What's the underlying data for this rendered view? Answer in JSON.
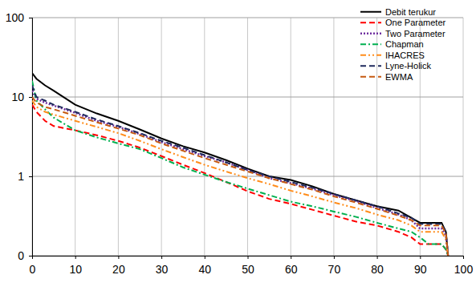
{
  "chart_data": {
    "type": "line",
    "log": "y",
    "grid": true,
    "legend": "upper right",
    "xlim": [
      0,
      100
    ],
    "xticks": [
      0,
      10,
      20,
      30,
      40,
      50,
      60,
      70,
      80,
      90,
      100
    ],
    "ylim": [
      0.1,
      100
    ],
    "yticks": [
      {
        "value": 0.1,
        "label": "0"
      },
      1,
      10,
      100
    ],
    "x": [
      0,
      1,
      3,
      5,
      10,
      15,
      20,
      25,
      30,
      35,
      40,
      45,
      50,
      55,
      60,
      65,
      70,
      75,
      80,
      85,
      88,
      90,
      92,
      94,
      95,
      96,
      96.5
    ],
    "series": [
      {
        "name": "Debit terukur",
        "color": "#000000",
        "line_style": "solid",
        "values": [
          20,
          17,
          14,
          12,
          8,
          6.2,
          5,
          3.9,
          3,
          2.4,
          2.0,
          1.6,
          1.25,
          1.0,
          0.9,
          0.75,
          0.6,
          0.5,
          0.42,
          0.37,
          0.3,
          0.26,
          0.26,
          0.26,
          0.26,
          0.2,
          0.1
        ]
      },
      {
        "name": "One Parameter",
        "color": "#ff0000",
        "line_style": "dashed",
        "values": [
          8,
          6.5,
          5,
          4.3,
          3.8,
          3.3,
          2.8,
          2.3,
          1.8,
          1.4,
          1.1,
          0.85,
          0.65,
          0.52,
          0.45,
          0.38,
          0.32,
          0.27,
          0.24,
          0.2,
          0.17,
          0.14,
          0.14,
          0.14,
          0.14,
          0.12,
          0.1
        ]
      },
      {
        "name": "Two Parameter",
        "color": "#7030a0",
        "line_style": "dotted",
        "values": [
          12,
          9.5,
          8.5,
          7.8,
          6.3,
          5,
          4.2,
          3.4,
          2.7,
          2.2,
          1.8,
          1.5,
          1.2,
          0.95,
          0.82,
          0.7,
          0.58,
          0.49,
          0.4,
          0.33,
          0.28,
          0.22,
          0.22,
          0.22,
          0.22,
          0.18,
          0.1
        ]
      },
      {
        "name": "Chapman",
        "color": "#00b050",
        "line_style": "dashdot",
        "values": [
          16,
          9,
          7,
          5.5,
          3.8,
          3.1,
          2.6,
          2.2,
          1.7,
          1.3,
          1.05,
          0.85,
          0.7,
          0.58,
          0.48,
          0.42,
          0.36,
          0.31,
          0.26,
          0.22,
          0.2,
          0.17,
          0.14,
          0.14,
          0.14,
          0.12,
          0.1
        ]
      },
      {
        "name": "IHACRES",
        "color": "#ff8c1a",
        "line_style": "dashdotdot",
        "values": [
          9,
          7.5,
          6.5,
          6,
          5,
          4.2,
          3.5,
          2.8,
          2.2,
          1.75,
          1.4,
          1.15,
          0.95,
          0.8,
          0.66,
          0.56,
          0.47,
          0.4,
          0.33,
          0.28,
          0.24,
          0.2,
          0.2,
          0.2,
          0.2,
          0.16,
          0.1
        ]
      },
      {
        "name": "Lyne-Holick",
        "color": "#1f2a5c",
        "line_style": "dashed",
        "values": [
          14,
          10,
          9,
          8,
          6.5,
          5.2,
          4.3,
          3.5,
          2.8,
          2.3,
          1.85,
          1.5,
          1.2,
          1.0,
          0.85,
          0.72,
          0.6,
          0.5,
          0.42,
          0.34,
          0.3,
          0.25,
          0.25,
          0.25,
          0.25,
          0.2,
          0.1
        ]
      },
      {
        "name": "EWMA",
        "color": "#c55a11",
        "line_style": "dashed",
        "values": [
          10,
          8.5,
          7.5,
          7,
          5.8,
          4.8,
          4.0,
          3.3,
          2.6,
          2.1,
          1.7,
          1.4,
          1.15,
          0.95,
          0.8,
          0.68,
          0.56,
          0.47,
          0.39,
          0.32,
          0.28,
          0.24,
          0.24,
          0.24,
          0.24,
          0.19,
          0.1
        ]
      }
    ]
  }
}
